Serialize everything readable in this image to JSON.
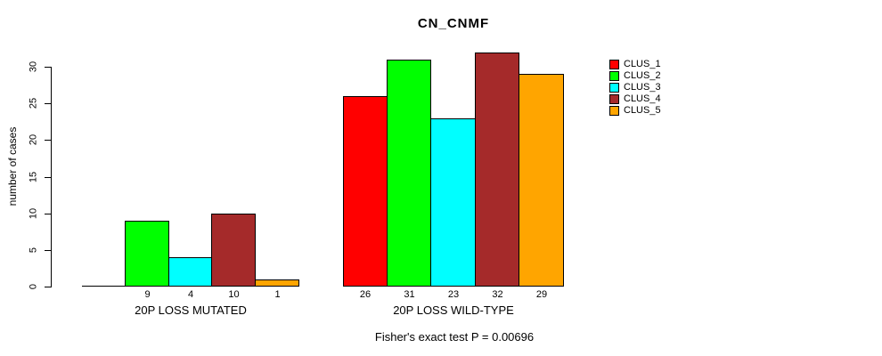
{
  "legend": {
    "position": "right",
    "items": [
      {
        "label": "CLUS_1",
        "color": "#FF0000"
      },
      {
        "label": "CLUS_2",
        "color": "#00FF00"
      },
      {
        "label": "CLUS_3",
        "color": "#00FFFF"
      },
      {
        "label": "CLUS_4",
        "color": "#A52A2A"
      },
      {
        "label": "CLUS_5",
        "color": "#FFA500"
      }
    ]
  },
  "chart_data": {
    "type": "bar",
    "title": "CN_CNMF",
    "ylabel": "number of cases",
    "xlabel": "",
    "ylim": [
      0,
      30
    ],
    "yticks": [
      0,
      5,
      10,
      15,
      20,
      25,
      30
    ],
    "grid": false,
    "legend_position": "right",
    "categories": [
      "20P LOSS MUTATED",
      "20P LOSS WILD-TYPE"
    ],
    "series": [
      {
        "name": "CLUS_1",
        "color": "#FF0000",
        "values": [
          0,
          26
        ]
      },
      {
        "name": "CLUS_2",
        "color": "#00FF00",
        "values": [
          9,
          31
        ]
      },
      {
        "name": "CLUS_3",
        "color": "#00FFFF",
        "values": [
          4,
          23
        ]
      },
      {
        "name": "CLUS_4",
        "color": "#A52A2A",
        "values": [
          10,
          32
        ]
      },
      {
        "name": "CLUS_5",
        "color": "#FFA500",
        "values": [
          1,
          29
        ]
      }
    ],
    "bar_labels": [
      [
        "",
        "9",
        "4",
        "10",
        "1"
      ],
      [
        "26",
        "31",
        "23",
        "32",
        "29"
      ]
    ],
    "annotation": "Fisher's exact test P = 0.00696"
  }
}
